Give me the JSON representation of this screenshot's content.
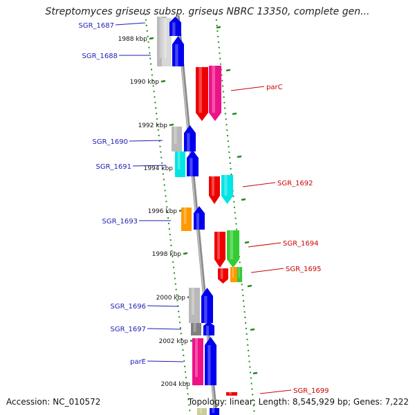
{
  "title": "Streptomyces griseus subsp. griseus NBRC 13350, complete gen...",
  "accession": "Accession: NC_010572",
  "topology": "Topology: linear; Length: 8,545,929 bp; Genes: 7,222",
  "colors": {
    "backbone": "#8c8c8c",
    "scale_ticks": "#1f8a1f",
    "left_labels": "#1c1cb4",
    "right_labels": "#cc0000",
    "gene_blue": "#0000ee",
    "gene_gray": "#b9b9b9",
    "gene_red": "#ee0000",
    "gene_magenta": "#ee1188",
    "gene_cyan": "#00e5e5",
    "gene_orange": "#ff9900",
    "gene_green": "#33cc33",
    "gene_darkgray": "#808080",
    "gene_olive": "#cccc99"
  },
  "scale_ticks": [
    {
      "label": "1988 kbp"
    },
    {
      "label": "1990 kbp"
    },
    {
      "label": "1992 kbp"
    },
    {
      "label": "1994 kbp"
    },
    {
      "label": "1996 kbp"
    },
    {
      "label": "1998 kbp"
    },
    {
      "label": "2000 kbp"
    },
    {
      "label": "2002 kbp"
    },
    {
      "label": "2004 kbp"
    }
  ],
  "left_labels": [
    {
      "label": "SGR_1687"
    },
    {
      "label": "SGR_1688"
    },
    {
      "label": "SGR_1690"
    },
    {
      "label": "SGR_1691"
    },
    {
      "label": "SGR_1693"
    },
    {
      "label": "SGR_1696"
    },
    {
      "label": "SGR_1697"
    },
    {
      "label": "parE"
    }
  ],
  "right_labels": [
    {
      "label": "parC"
    },
    {
      "label": "SGR_1692"
    },
    {
      "label": "SGR_1694"
    },
    {
      "label": "SGR_1695"
    },
    {
      "label": "SGR_1699"
    }
  ]
}
